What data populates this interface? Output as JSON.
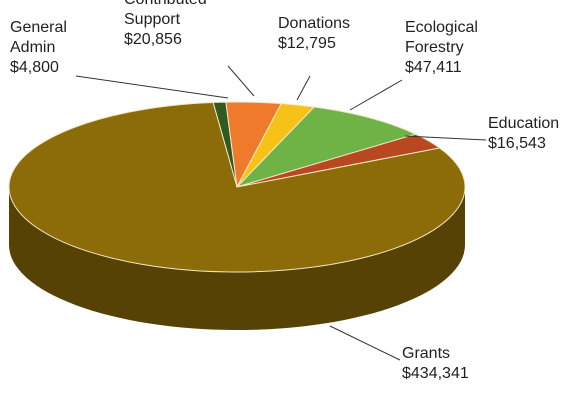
{
  "chart_data": {
    "type": "pie",
    "style": "3d",
    "legend": "none",
    "slices": [
      {
        "name": "General Admin",
        "label_lines": [
          "General",
          "Admin"
        ],
        "value_label": "$4,800",
        "value": 4800,
        "color": "#2f5a22",
        "side_color": "#1a3312"
      },
      {
        "name": "Contributed Support",
        "label_lines": [
          "Contributed",
          "Support"
        ],
        "value_label": "$20,856",
        "value": 20856,
        "color": "#f07a2c",
        "side_color": "#b0521a"
      },
      {
        "name": "Donations",
        "label_lines": [
          "Donations"
        ],
        "value_label": "$12,795",
        "value": 12795,
        "color": "#f7c217",
        "side_color": "#b88b0c"
      },
      {
        "name": "Ecological Forestry",
        "label_lines": [
          "Ecological",
          "Forestry"
        ],
        "value_label": "$47,411",
        "value": 47411,
        "color": "#6fb346",
        "side_color": "#467a2a"
      },
      {
        "name": "Education",
        "label_lines": [
          "Education"
        ],
        "value_label": "$16,543",
        "value": 16543,
        "color": "#b94720",
        "side_color": "#7a2c12"
      },
      {
        "name": "Grants",
        "label_lines": [
          "Grants"
        ],
        "value_label": "$434,341",
        "value": 434341,
        "color": "#8c6c08",
        "side_color": "#574206"
      }
    ]
  }
}
